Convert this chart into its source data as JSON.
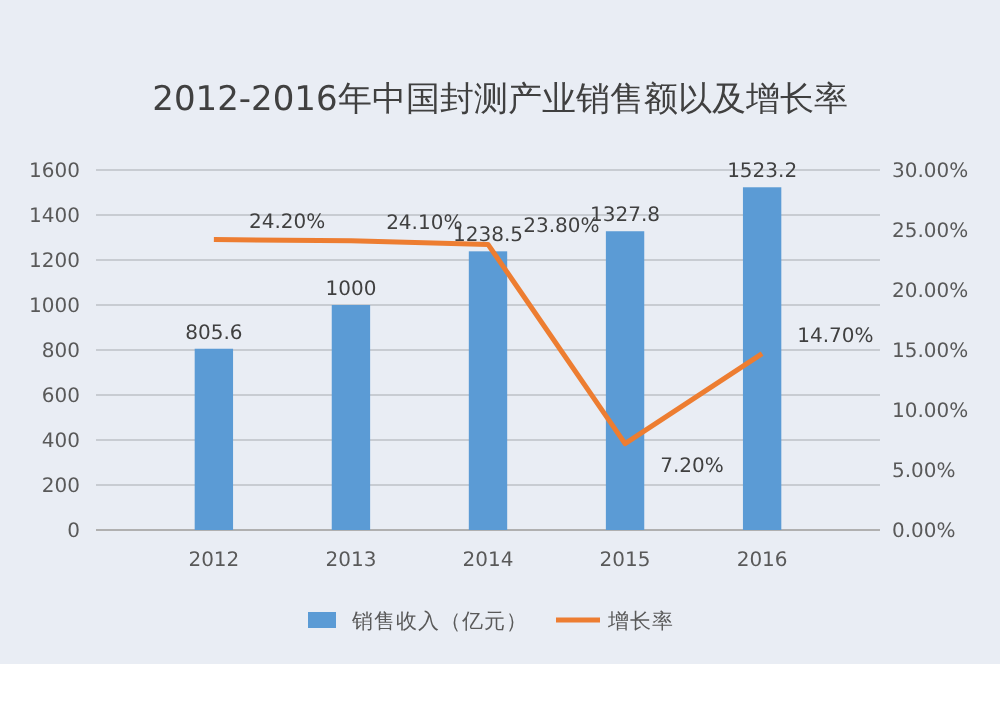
{
  "chart_data": {
    "type": "bar",
    "title": "2012-2016年中国封测产业销售额以及增长率",
    "categories": [
      "2012",
      "2013",
      "2014",
      "2015",
      "2016"
    ],
    "series": [
      {
        "name": "销售收入（亿元）",
        "color": "#5b9bd5",
        "values": [
          805.6,
          1000,
          1238.5,
          1327.8,
          1523.2
        ],
        "value_labels": [
          "805.6",
          "1000",
          "1238.5",
          "1327.8",
          "1523.2"
        ]
      },
      {
        "name": "增长率",
        "type": "line",
        "axis": "y2",
        "color": "#ed7d31",
        "values": [
          24.2,
          24.1,
          23.8,
          7.2,
          14.7
        ],
        "value_labels": [
          "24.20%",
          "24.10%",
          "23.80%",
          "7.20%",
          "14.70%"
        ]
      }
    ],
    "ylim": [
      0,
      1600
    ],
    "yticks": [
      0,
      200,
      400,
      600,
      800,
      1000,
      1200,
      1400,
      1600
    ],
    "y2lim": [
      0,
      30
    ],
    "y2ticks": [
      {
        "value": 0,
        "label": "0.00%"
      },
      {
        "value": 5,
        "label": "5.00%"
      },
      {
        "value": 10,
        "label": "10.00%"
      },
      {
        "value": 15,
        "label": "15.00%"
      },
      {
        "value": 20,
        "label": "20.00%"
      },
      {
        "value": 25,
        "label": "25.00%"
      },
      {
        "value": 30,
        "label": "30.00%"
      }
    ],
    "grid": "y",
    "legend": "bottom",
    "marker": "none",
    "line_style": "solid"
  }
}
